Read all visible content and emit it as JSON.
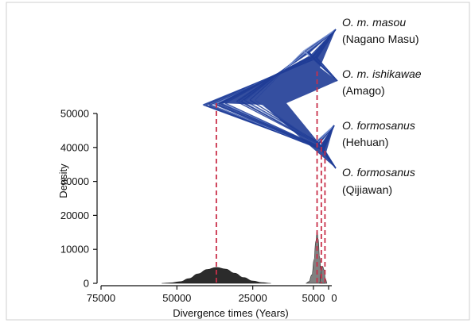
{
  "chart_data": {
    "type": "area",
    "xlabel": "Divergence times (Years)",
    "ylabel": "Density",
    "x_reversed": true,
    "xlim": [
      75000,
      0
    ],
    "ylim": [
      0,
      50000
    ],
    "x_ticks": [
      75000,
      50000,
      25000,
      5000,
      0
    ],
    "y_ticks": [
      0,
      10000,
      20000,
      30000,
      40000,
      50000
    ],
    "grid": false,
    "colors": {
      "tree": "#1f3c96",
      "tree_light": "#7f99d6",
      "density_root": "#2b2b2b",
      "density_tips": "#7a7a7a",
      "median_line": "#c9304a"
    },
    "median_divergence_times": [
      37000,
      3800,
      2400,
      1200
    ],
    "series": [
      {
        "x": [
          55000,
          52000,
          49000,
          46000,
          43000,
          40000,
          37000,
          34000,
          31000,
          28000,
          25000,
          22000,
          19000
        ],
        "values": [
          0,
          150,
          500,
          1400,
          2800,
          4100,
          4700,
          4200,
          3000,
          1700,
          700,
          200,
          0
        ]
      },
      {
        "x": [
          7500,
          6500,
          5500,
          4800,
          4200,
          3800,
          3400,
          3000,
          2500,
          1800,
          1000
        ],
        "values": [
          0,
          500,
          2500,
          7000,
          12500,
          15500,
          13000,
          8000,
          3500,
          800,
          0
        ]
      },
      {
        "x": [
          3000,
          2400,
          2000,
          1500,
          1000,
          500
        ],
        "values": [
          0,
          3500,
          5000,
          4000,
          1200,
          0
        ]
      }
    ],
    "taxa": [
      {
        "species": "O. m. masou",
        "population": "(Nagano Masu)"
      },
      {
        "species": "O. m. ishikawae",
        "population": "(Amago)"
      },
      {
        "species": "O. formosanus",
        "population": "(Hehuan)"
      },
      {
        "species": "O. formosanus",
        "population": "(Qijiawan)"
      }
    ]
  }
}
